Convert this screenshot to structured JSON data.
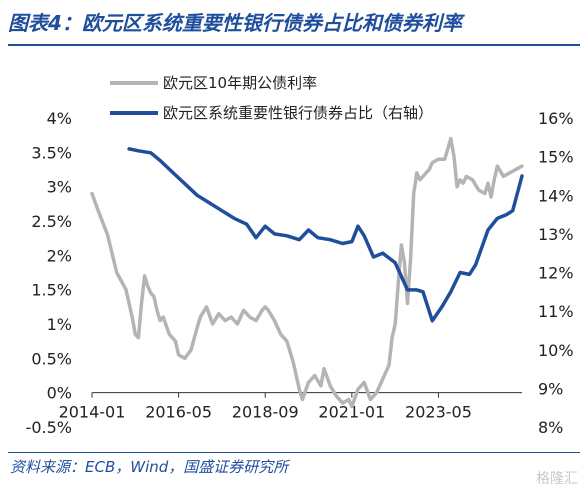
{
  "header": {
    "title": "图表4：欧元区系统重要性银行债券占比和债券利率"
  },
  "footer": {
    "source": "资料来源：ECB，Wind，国盛证券研究所",
    "watermark": "格隆汇"
  },
  "chart_data": {
    "type": "line",
    "x_ticks": [
      "2014-01",
      "2016-05",
      "2018-09",
      "2021-01",
      "2023-05"
    ],
    "x_range": [
      "2014-01",
      "2025-08"
    ],
    "left_axis": {
      "min": -0.5,
      "max": 4,
      "ticks": [
        "-0.5%",
        "0%",
        "0.5%",
        "1%",
        "1.5%",
        "2%",
        "2.5%",
        "3%",
        "3.5%",
        "4%"
      ]
    },
    "right_axis": {
      "min": 8,
      "max": 16,
      "ticks": [
        "8%",
        "9%",
        "10%",
        "11%",
        "12%",
        "13%",
        "14%",
        "15%",
        "16%"
      ]
    },
    "grid": false,
    "legend_position": "top",
    "series": [
      {
        "name": "欧元区10年期公债利率",
        "axis": "left",
        "color": "#b4b4b4",
        "points": [
          [
            "2014-01",
            2.9
          ],
          [
            "2014-03",
            2.65
          ],
          [
            "2014-06",
            2.3
          ],
          [
            "2014-09",
            1.75
          ],
          [
            "2014-12",
            1.5
          ],
          [
            "2015-02",
            1.1
          ],
          [
            "2015-03",
            0.85
          ],
          [
            "2015-04",
            0.8
          ],
          [
            "2015-05",
            1.3
          ],
          [
            "2015-06",
            1.7
          ],
          [
            "2015-07",
            1.55
          ],
          [
            "2015-08",
            1.45
          ],
          [
            "2015-09",
            1.4
          ],
          [
            "2015-10",
            1.2
          ],
          [
            "2015-11",
            1.05
          ],
          [
            "2015-12",
            1.1
          ],
          [
            "2016-02",
            0.85
          ],
          [
            "2016-04",
            0.75
          ],
          [
            "2016-05",
            0.55
          ],
          [
            "2016-07",
            0.5
          ],
          [
            "2016-09",
            0.62
          ],
          [
            "2016-11",
            0.95
          ],
          [
            "2016-12",
            1.1
          ],
          [
            "2017-02",
            1.25
          ],
          [
            "2017-04",
            1.0
          ],
          [
            "2017-06",
            1.15
          ],
          [
            "2017-08",
            1.05
          ],
          [
            "2017-10",
            1.1
          ],
          [
            "2017-12",
            1.0
          ],
          [
            "2018-02",
            1.2
          ],
          [
            "2018-04",
            1.1
          ],
          [
            "2018-06",
            1.05
          ],
          [
            "2018-08",
            1.2
          ],
          [
            "2018-09",
            1.25
          ],
          [
            "2018-10",
            1.2
          ],
          [
            "2018-12",
            1.05
          ],
          [
            "2019-02",
            0.85
          ],
          [
            "2019-04",
            0.75
          ],
          [
            "2019-06",
            0.45
          ],
          [
            "2019-08",
            0.05
          ],
          [
            "2019-09",
            -0.1
          ],
          [
            "2019-11",
            0.15
          ],
          [
            "2020-01",
            0.25
          ],
          [
            "2020-03",
            0.1
          ],
          [
            "2020-04",
            0.35
          ],
          [
            "2020-06",
            0.1
          ],
          [
            "2020-08",
            -0.05
          ],
          [
            "2020-10",
            -0.15
          ],
          [
            "2020-12",
            -0.1
          ],
          [
            "2021-01",
            -0.2
          ],
          [
            "2021-03",
            0.05
          ],
          [
            "2021-05",
            0.15
          ],
          [
            "2021-07",
            -0.1
          ],
          [
            "2021-09",
            0.0
          ],
          [
            "2021-11",
            0.2
          ],
          [
            "2022-01",
            0.4
          ],
          [
            "2022-02",
            0.8
          ],
          [
            "2022-03",
            1.0
          ],
          [
            "2022-04",
            1.6
          ],
          [
            "2022-05",
            2.15
          ],
          [
            "2022-06",
            1.9
          ],
          [
            "2022-07",
            1.3
          ],
          [
            "2022-08",
            1.95
          ],
          [
            "2022-09",
            2.9
          ],
          [
            "2022-10",
            3.2
          ],
          [
            "2022-11",
            3.1
          ],
          [
            "2022-12",
            3.15
          ],
          [
            "2023-01",
            3.2
          ],
          [
            "2023-02",
            3.25
          ],
          [
            "2023-03",
            3.35
          ],
          [
            "2023-05",
            3.4
          ],
          [
            "2023-07",
            3.4
          ],
          [
            "2023-08",
            3.55
          ],
          [
            "2023-09",
            3.7
          ],
          [
            "2023-10",
            3.45
          ],
          [
            "2023-11",
            3.0
          ],
          [
            "2023-12",
            3.1
          ],
          [
            "2024-01",
            3.05
          ],
          [
            "2024-02",
            3.15
          ],
          [
            "2024-04",
            3.1
          ],
          [
            "2024-06",
            2.95
          ],
          [
            "2024-08",
            2.9
          ],
          [
            "2024-09",
            3.05
          ],
          [
            "2024-10",
            2.85
          ],
          [
            "2024-11",
            3.1
          ],
          [
            "2024-12",
            3.3
          ],
          [
            "2025-02",
            3.15
          ],
          [
            "2025-04",
            3.2
          ],
          [
            "2025-06",
            3.25
          ],
          [
            "2025-08",
            3.3
          ]
        ]
      },
      {
        "name": "欧元区系统重要性银行债券占比（右轴）",
        "axis": "right",
        "color": "#1f4e9c",
        "points": [
          [
            "2015-01",
            15.2
          ],
          [
            "2015-04",
            15.15
          ],
          [
            "2015-08",
            15.1
          ],
          [
            "2015-11",
            14.9
          ],
          [
            "2016-03",
            14.6
          ],
          [
            "2016-07",
            14.3
          ],
          [
            "2016-11",
            14.0
          ],
          [
            "2017-03",
            13.8
          ],
          [
            "2017-07",
            13.6
          ],
          [
            "2017-11",
            13.4
          ],
          [
            "2018-03",
            13.25
          ],
          [
            "2018-06",
            12.9
          ],
          [
            "2018-09",
            13.2
          ],
          [
            "2018-12",
            13.0
          ],
          [
            "2019-04",
            12.95
          ],
          [
            "2019-08",
            12.85
          ],
          [
            "2019-11",
            13.1
          ],
          [
            "2020-02",
            12.9
          ],
          [
            "2020-06",
            12.85
          ],
          [
            "2020-10",
            12.75
          ],
          [
            "2021-01",
            12.8
          ],
          [
            "2021-03",
            13.2
          ],
          [
            "2021-05",
            12.95
          ],
          [
            "2021-08",
            12.4
          ],
          [
            "2021-11",
            12.5
          ],
          [
            "2022-03",
            12.25
          ],
          [
            "2022-07",
            11.55
          ],
          [
            "2022-10",
            11.55
          ],
          [
            "2022-12",
            11.5
          ],
          [
            "2023-03",
            10.75
          ],
          [
            "2023-06",
            11.1
          ],
          [
            "2023-09",
            11.5
          ],
          [
            "2023-12",
            12.0
          ],
          [
            "2024-03",
            11.95
          ],
          [
            "2024-05",
            12.2
          ],
          [
            "2024-09",
            13.1
          ],
          [
            "2024-12",
            13.4
          ],
          [
            "2025-03",
            13.5
          ],
          [
            "2025-05",
            13.6
          ],
          [
            "2025-08",
            14.5
          ]
        ]
      }
    ]
  }
}
